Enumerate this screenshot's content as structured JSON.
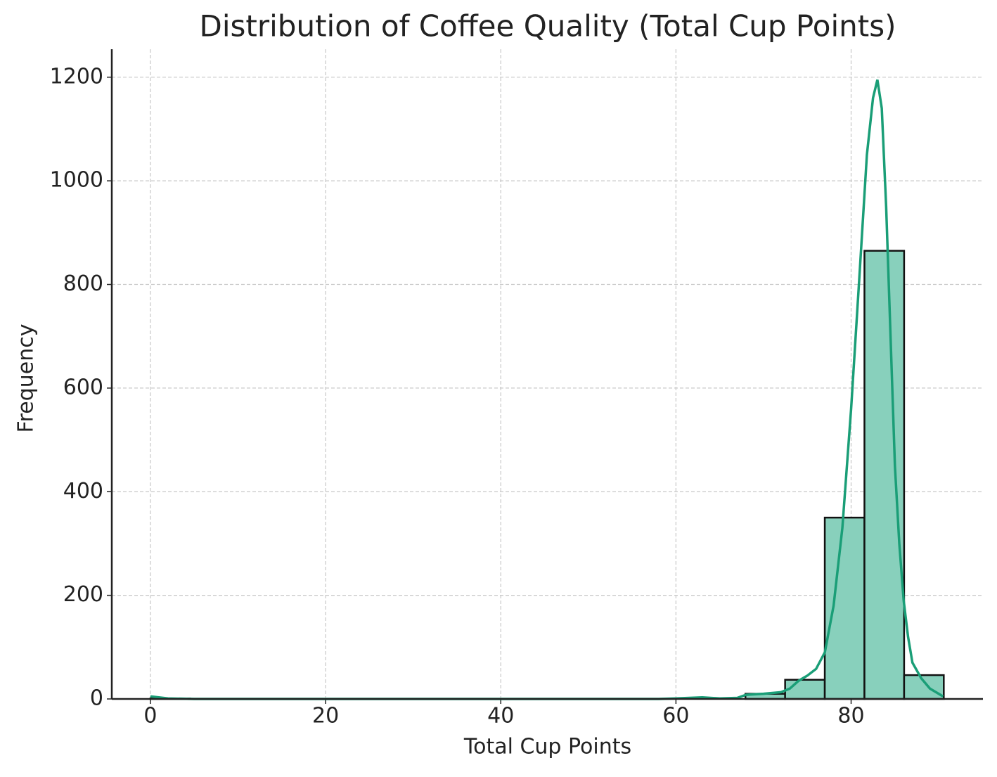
{
  "chart_data": {
    "type": "histogram",
    "title": "Distribution of Coffee Quality (Total Cup Points)",
    "x_label": "Total Cup Points",
    "y_label": "Frequency",
    "bins": [
      0,
      4.529,
      9.058,
      13.587,
      18.116,
      22.645,
      27.174,
      31.703,
      36.232,
      40.761,
      45.29,
      49.819,
      54.348,
      58.877,
      63.406,
      67.935,
      72.464,
      76.993,
      81.522,
      86.051,
      90.58
    ],
    "counts": [
      1,
      0,
      0,
      0,
      0,
      0,
      0,
      0,
      0,
      0,
      0,
      0,
      0,
      0,
      0,
      10,
      37,
      350,
      865,
      46
    ],
    "color": "#88d0bc",
    "edgecolor": "#111111",
    "kde": {
      "color": "#1a9e77",
      "x": [
        0,
        2,
        5,
        10,
        20,
        30,
        40,
        50,
        58,
        60,
        63,
        65,
        67,
        68,
        70,
        72,
        73,
        74,
        75,
        76,
        77,
        78,
        79,
        80,
        81,
        81.8,
        82.5,
        83,
        83.5,
        84,
        84.5,
        85,
        85.5,
        86,
        86.5,
        87,
        88,
        89,
        90.5
      ],
      "values": [
        5,
        1,
        0,
        0,
        0,
        0,
        0,
        0,
        0,
        1,
        3,
        1,
        2,
        8,
        10,
        13,
        20,
        35,
        45,
        58,
        90,
        180,
        330,
        560,
        830,
        1050,
        1160,
        1195,
        1140,
        950,
        700,
        450,
        300,
        190,
        120,
        70,
        40,
        20,
        5
      ]
    },
    "xlim": [
      -4.41,
      95.05
    ],
    "ylim": [
      0,
      1254
    ],
    "xticks": [
      0,
      20,
      40,
      60,
      80
    ],
    "yticks": [
      0,
      200,
      400,
      600,
      800,
      1000,
      1200
    ],
    "grid": true
  }
}
